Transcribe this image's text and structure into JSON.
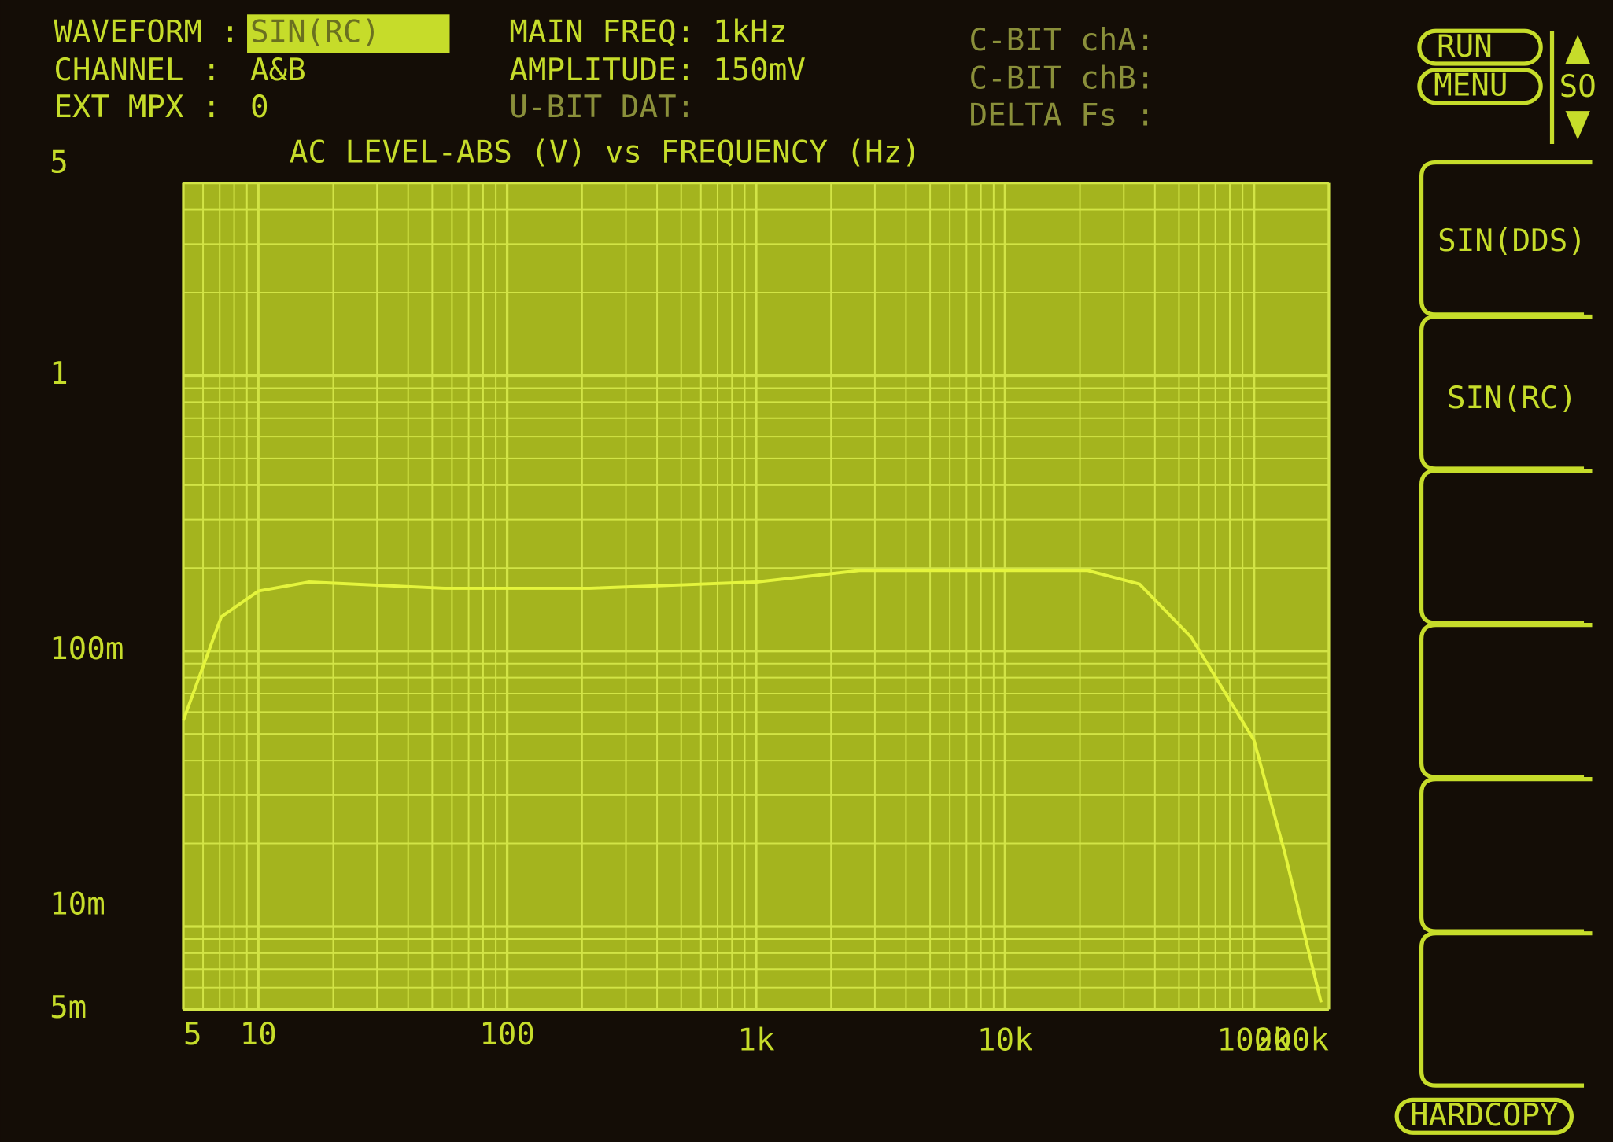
{
  "header": {
    "columns": [
      [
        {
          "label": "WAVEFORM :",
          "value": "SIN(RC)"
        },
        {
          "label": "CHANNEL  :",
          "value": "A&B"
        },
        {
          "label": "EXT MPX  :",
          "value": "0"
        }
      ],
      [
        {
          "label": "MAIN FREQ:",
          "value": "1kHz"
        },
        {
          "label": "AMPLITUDE:",
          "value": "150mV"
        },
        {
          "label": "U-BIT DAT:"
        }
      ],
      [
        {
          "label": "C-BIT chA:"
        },
        {
          "label": "C-BIT chB:"
        },
        {
          "label": "DELTA Fs :"
        }
      ]
    ]
  },
  "controls": {
    "run": "RUN",
    "menu": "MENU",
    "scroll": "SO",
    "hardcopy": "HARDCOPY"
  },
  "softkeys": [
    "SIN(DDS)",
    "SIN(RC)"
  ],
  "chart_data": {
    "type": "line",
    "title": "AC LEVEL-ABS (V) vs FREQUENCY (Hz)",
    "x": [
      5,
      7.1,
      10,
      16,
      56,
      215,
      1000,
      2600,
      21500,
      34700,
      56000,
      100000,
      133000,
      186000
    ],
    "values": [
      0.056,
      0.133,
      0.165,
      0.178,
      0.169,
      0.169,
      0.178,
      0.196,
      0.196,
      0.175,
      0.112,
      0.0475,
      0.0185,
      0.0053
    ],
    "color": "#e4f43c",
    "xlog": true,
    "ylog": true,
    "grid": true,
    "xlim": [
      5,
      200000
    ],
    "ylim": [
      0.005,
      5
    ],
    "xticks": [
      5,
      10,
      100,
      {
        "value": 1000,
        "label": "1k"
      },
      {
        "value": 10000,
        "label": "10k"
      },
      {
        "value": 100000,
        "label": "100k"
      },
      {
        "value": 200000,
        "label": "200k"
      }
    ],
    "yticks": [
      {
        "value": 0.005,
        "label": "5m"
      },
      {
        "value": 0.01,
        "label": "10m"
      },
      {
        "value": 0.1,
        "label": "100m"
      },
      1,
      5
    ],
    "xminor": [
      6,
      7,
      8,
      9,
      20,
      30,
      40,
      50,
      60,
      70,
      80,
      90,
      200,
      300,
      400,
      500,
      600,
      700,
      800,
      900,
      2000,
      3000,
      4000,
      5000,
      6000,
      7000,
      8000,
      9000,
      20000,
      30000,
      40000,
      50000,
      60000,
      70000,
      80000,
      90000
    ],
    "yminor": [
      0.006,
      0.007,
      0.008,
      0.009,
      0.02,
      0.03,
      0.04,
      0.05,
      0.06,
      0.07,
      0.08,
      0.09,
      0.2,
      0.3,
      0.4,
      0.5,
      0.6,
      0.7,
      0.8,
      0.9,
      2,
      3,
      4
    ]
  }
}
